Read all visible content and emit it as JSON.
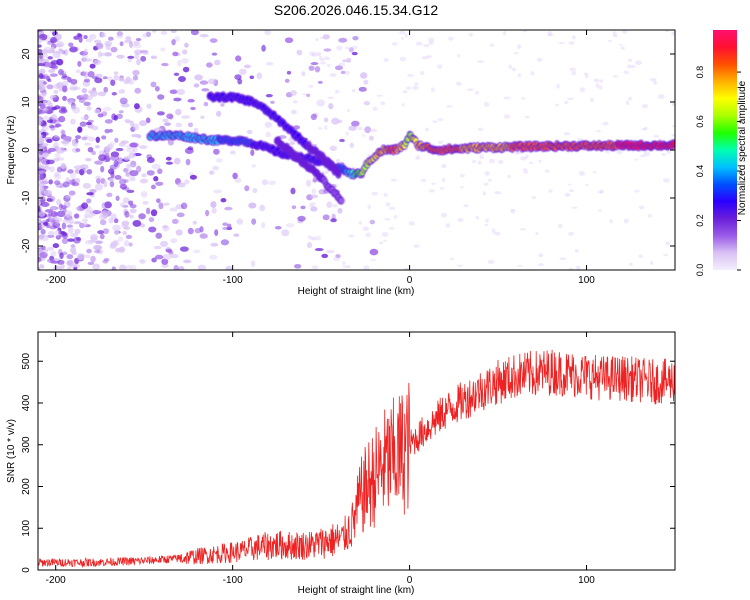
{
  "title": "S206.2026.046.15.34.G12",
  "chart_data": [
    {
      "type": "heatmap",
      "xlabel": "Height of straight line (km)",
      "ylabel": "Frequency (Hz)",
      "xlim": [
        -210,
        150
      ],
      "ylim": [
        -25,
        25
      ],
      "x_ticks": [
        -200,
        -100,
        0,
        100
      ],
      "y_ticks": [
        -20,
        -10,
        0,
        10,
        20
      ],
      "colorbar": {
        "label": "Normalized spectral amplitude",
        "range": [
          0,
          0.97
        ],
        "ticks": [
          0.0,
          0.2,
          0.4,
          0.6,
          0.8
        ],
        "colors": [
          "#f4eefc",
          "#d9c2f5",
          "#9a5ce8",
          "#6a1fd9",
          "#2a00ff",
          "#0050ff",
          "#00c0ff",
          "#00ffb0",
          "#20ff00",
          "#aaff00",
          "#ffff00",
          "#ffb000",
          "#ff5000",
          "#ff1030",
          "#ff1070"
        ]
      },
      "ridges": [
        {
          "name": "main trace",
          "x": [
            -147,
            -130,
            -110,
            -95,
            -85,
            -70,
            -55,
            -45,
            -38,
            -33,
            -28,
            -22,
            -15,
            -8,
            -3,
            0,
            5,
            15,
            40,
            80,
            150
          ],
          "y": [
            3,
            3,
            2,
            2,
            1,
            -1,
            -2,
            -3,
            -4,
            -5,
            -5,
            -2,
            0,
            0,
            1,
            3,
            1,
            0,
            0.5,
            0.8,
            1
          ],
          "amp": [
            0.45,
            0.4,
            0.4,
            0.35,
            0.3,
            0.3,
            0.3,
            0.3,
            0.35,
            0.45,
            0.6,
            0.7,
            0.8,
            0.85,
            0.7,
            0.6,
            0.8,
            0.85,
            0.8,
            0.85,
            0.93
          ]
        },
        {
          "name": "upper branch",
          "x": [
            -113,
            -100,
            -88,
            -80,
            -70,
            -58,
            -48,
            -40
          ],
          "y": [
            11,
            11,
            10,
            8,
            5,
            1,
            -2,
            -5
          ],
          "amp": [
            0.3,
            0.3,
            0.3,
            0.3,
            0.25,
            0.25,
            0.2,
            0.2
          ]
        },
        {
          "name": "lower branch",
          "x": [
            -75,
            -62,
            -52,
            -45,
            -38
          ],
          "y": [
            2,
            -2,
            -5,
            -8,
            -11
          ],
          "amp": [
            0.2,
            0.2,
            0.2,
            0.15,
            0.15
          ]
        }
      ]
    },
    {
      "type": "line",
      "xlabel": "Height of straight line (km)",
      "ylabel": "SNR (10 * v/v)",
      "xlim": [
        -210,
        150
      ],
      "ylim": [
        0,
        570
      ],
      "x_ticks": [
        -200,
        -100,
        0,
        100
      ],
      "y_ticks": [
        0,
        100,
        200,
        300,
        400,
        500
      ],
      "series": [
        {
          "name": "SNR",
          "color": "#ee2222",
          "x": [
            -210,
            -180,
            -150,
            -130,
            -110,
            -95,
            -85,
            -75,
            -65,
            -55,
            -45,
            -38,
            -32,
            -28,
            -24,
            -20,
            -15,
            -10,
            -5,
            0,
            10,
            20,
            30,
            40,
            50,
            60,
            70,
            80,
            90,
            100,
            110,
            120,
            130,
            140,
            150
          ],
          "y": [
            18,
            18,
            22,
            28,
            38,
            45,
            55,
            60,
            58,
            60,
            70,
            75,
            110,
            170,
            200,
            220,
            250,
            265,
            280,
            300,
            340,
            380,
            405,
            430,
            450,
            465,
            470,
            475,
            470,
            465,
            460,
            460,
            455,
            450,
            455
          ]
        }
      ]
    }
  ]
}
